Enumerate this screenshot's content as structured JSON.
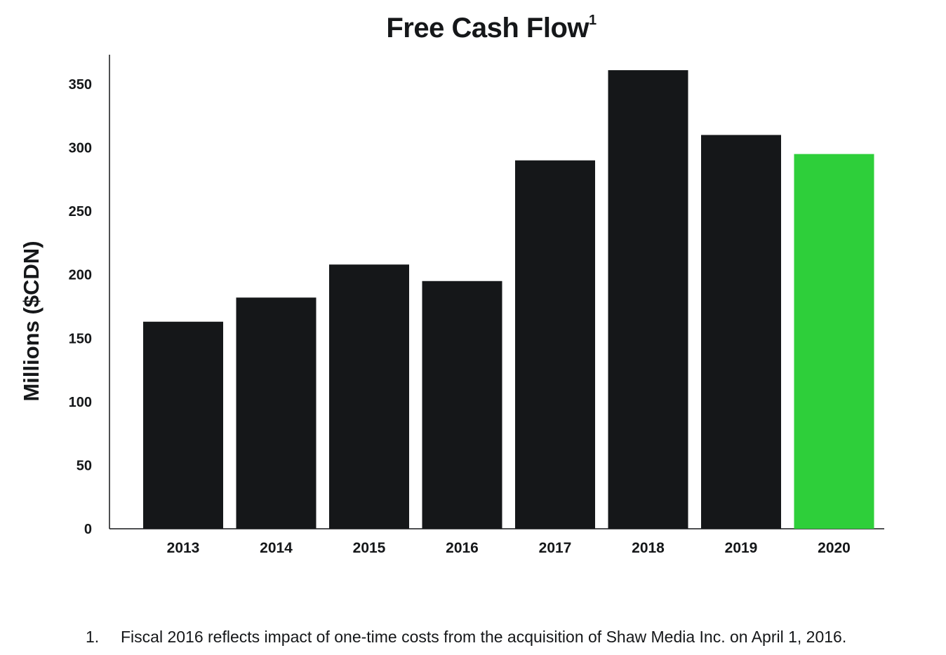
{
  "title": {
    "text": "Free Cash Flow",
    "footnote_marker": "1"
  },
  "footnote": {
    "number": "1.",
    "text": "Fiscal 2016 reflects impact of one-time costs from the acquisition of Shaw Media Inc. on April 1, 2016."
  },
  "colors": {
    "bar": "#151719",
    "highlight": "#2ecf3a",
    "axis": "#151719"
  },
  "chart_data": {
    "type": "bar",
    "title": "Free Cash Flow",
    "xlabel": "",
    "ylabel": "Millions ($CDN)",
    "categories": [
      "2013",
      "2014",
      "2015",
      "2016",
      "2017",
      "2018",
      "2019",
      "2020"
    ],
    "values": [
      163,
      182,
      208,
      195,
      290,
      361,
      310,
      295
    ],
    "highlight_category": "2020",
    "ylim": [
      0,
      385
    ],
    "yticks": [
      0,
      50,
      100,
      150,
      200,
      250,
      300,
      350
    ],
    "grid": false,
    "legend": "none"
  }
}
